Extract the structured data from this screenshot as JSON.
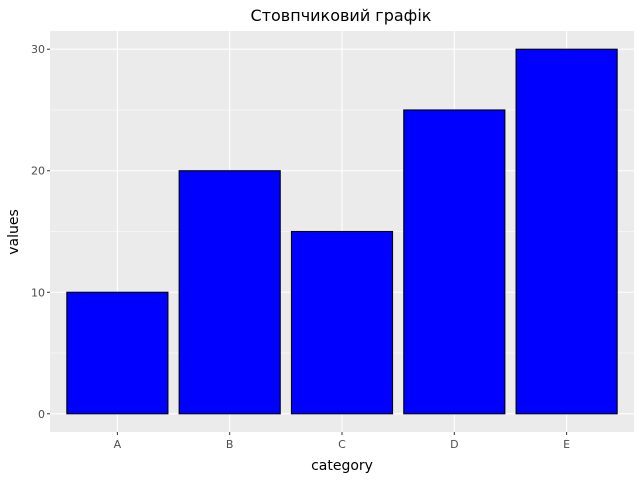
{
  "chart_data": {
    "type": "bar",
    "title": "Стовпчиковий графік",
    "xlabel": "category",
    "ylabel": "values",
    "categories": [
      "A",
      "B",
      "C",
      "D",
      "E"
    ],
    "values": [
      10,
      20,
      15,
      25,
      30
    ],
    "ylim": [
      -1.5,
      31.5
    ],
    "yticks": [
      0,
      10,
      20,
      30
    ],
    "ytick_labels": [
      "0",
      "10",
      "20",
      "30"
    ],
    "grid": true,
    "legend": "none",
    "colors": {
      "bar_fill": "#0000ff",
      "bar_edge": "#000000",
      "panel_background": "#ebebeb",
      "grid": "#ffffff"
    }
  }
}
